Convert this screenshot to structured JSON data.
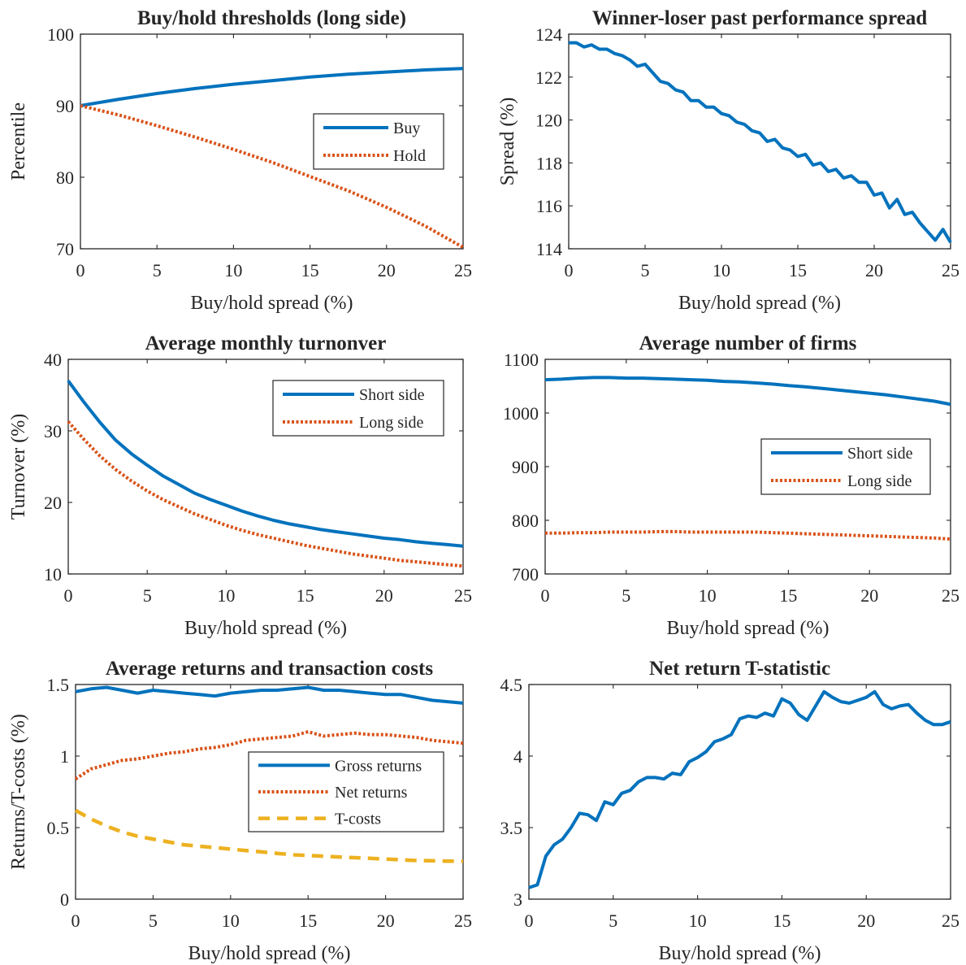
{
  "chart_data": [
    {
      "type": "line",
      "title": "Buy/hold thresholds (long side)",
      "xlabel": "Buy/hold spread (%)",
      "ylabel": "Percentile",
      "xlim": [
        0,
        25
      ],
      "ylim": [
        70,
        100
      ],
      "xticks": [
        0,
        5,
        10,
        15,
        20,
        25
      ],
      "yticks": [
        70,
        80,
        90,
        100
      ],
      "grid": false,
      "legend": "middle-right",
      "series": [
        {
          "name": "Buy",
          "style": "solid",
          "color": "#0072BD",
          "x": [
            0,
            2.5,
            5,
            7.5,
            10,
            12.5,
            15,
            17.5,
            20,
            22.5,
            25
          ],
          "y": [
            90,
            90.9,
            91.7,
            92.4,
            93.0,
            93.5,
            94.0,
            94.4,
            94.7,
            95.0,
            95.2
          ]
        },
        {
          "name": "Hold",
          "style": "dotted",
          "color": "#D95319",
          "x": [
            0,
            2.5,
            5,
            7.5,
            10,
            12.5,
            15,
            17.5,
            20,
            22.5,
            25
          ],
          "y": [
            90,
            88.7,
            87.2,
            85.6,
            83.9,
            82.1,
            80.1,
            78.1,
            75.8,
            73.2,
            70.2
          ]
        }
      ]
    },
    {
      "type": "line",
      "title": "Winner-loser past performance spread",
      "xlabel": "Buy/hold spread (%)",
      "ylabel": "Spread (%)",
      "xlim": [
        0,
        25
      ],
      "ylim": [
        114,
        124
      ],
      "xticks": [
        0,
        5,
        10,
        15,
        20,
        25
      ],
      "yticks": [
        114,
        116,
        118,
        120,
        122,
        124
      ],
      "grid": false,
      "series": [
        {
          "name": "",
          "style": "solid",
          "color": "#0072BD",
          "x": [
            0,
            0.5,
            1,
            1.5,
            2,
            2.5,
            3,
            3.5,
            4,
            4.5,
            5,
            5.5,
            6,
            6.5,
            7,
            7.5,
            8,
            8.5,
            9,
            9.5,
            10,
            10.5,
            11,
            11.5,
            12,
            12.5,
            13,
            13.5,
            14,
            14.5,
            15,
            15.5,
            16,
            16.5,
            17,
            17.5,
            18,
            18.5,
            19,
            19.5,
            20,
            20.5,
            21,
            21.5,
            22,
            22.5,
            23,
            23.5,
            24,
            24.5,
            25
          ],
          "y": [
            123.6,
            123.6,
            123.4,
            123.5,
            123.3,
            123.3,
            123.1,
            123.0,
            122.8,
            122.5,
            122.6,
            122.2,
            121.8,
            121.7,
            121.4,
            121.3,
            120.9,
            120.9,
            120.6,
            120.6,
            120.3,
            120.2,
            119.9,
            119.8,
            119.5,
            119.4,
            119.0,
            119.1,
            118.7,
            118.6,
            118.3,
            118.4,
            117.9,
            118.0,
            117.6,
            117.7,
            117.3,
            117.4,
            117.1,
            117.1,
            116.5,
            116.6,
            115.9,
            116.3,
            115.6,
            115.7,
            115.2,
            114.8,
            114.4,
            114.9,
            114.3
          ]
        }
      ]
    },
    {
      "type": "line",
      "title": "Average monthly turnonver",
      "xlabel": "Buy/hold spread (%)",
      "ylabel": "Turnover (%)",
      "xlim": [
        0,
        25
      ],
      "ylim": [
        10,
        40
      ],
      "xticks": [
        0,
        5,
        10,
        15,
        20,
        25
      ],
      "yticks": [
        10,
        20,
        30,
        40
      ],
      "grid": false,
      "legend": "top-right",
      "series": [
        {
          "name": "Short side",
          "style": "solid",
          "color": "#0072BD",
          "x": [
            0,
            1,
            2,
            3,
            4,
            5,
            6,
            7,
            8,
            9,
            10,
            11,
            12,
            13,
            14,
            15,
            16,
            17,
            18,
            19,
            20,
            21,
            22,
            23,
            24,
            25
          ],
          "y": [
            37.0,
            34.0,
            31.2,
            28.7,
            26.8,
            25.2,
            23.7,
            22.5,
            21.3,
            20.4,
            19.6,
            18.8,
            18.1,
            17.5,
            17.0,
            16.6,
            16.2,
            15.9,
            15.6,
            15.3,
            15.0,
            14.8,
            14.5,
            14.3,
            14.1,
            13.9
          ]
        },
        {
          "name": "Long side",
          "style": "dotted",
          "color": "#D95319",
          "x": [
            0,
            1,
            2,
            3,
            4,
            5,
            6,
            7,
            8,
            9,
            10,
            11,
            12,
            13,
            14,
            15,
            16,
            17,
            18,
            19,
            20,
            21,
            22,
            23,
            24,
            25
          ],
          "y": [
            31.3,
            28.8,
            26.5,
            24.6,
            23.0,
            21.6,
            20.4,
            19.4,
            18.4,
            17.6,
            16.8,
            16.1,
            15.5,
            15.0,
            14.5,
            14.0,
            13.6,
            13.2,
            12.8,
            12.5,
            12.2,
            11.9,
            11.7,
            11.5,
            11.3,
            11.1
          ]
        }
      ]
    },
    {
      "type": "line",
      "title": "Average number of firms",
      "xlabel": "Buy/hold spread (%)",
      "ylabel": "",
      "xlim": [
        0,
        25
      ],
      "ylim": [
        700,
        1100
      ],
      "xticks": [
        0,
        5,
        10,
        15,
        20,
        25
      ],
      "yticks": [
        700,
        800,
        900,
        1000,
        1100
      ],
      "grid": false,
      "legend": "middle-right",
      "series": [
        {
          "name": "Short side",
          "style": "solid",
          "color": "#0072BD",
          "x": [
            0,
            1,
            2,
            3,
            4,
            5,
            6,
            7,
            8,
            9,
            10,
            11,
            12,
            13,
            14,
            15,
            16,
            17,
            18,
            19,
            20,
            21,
            22,
            23,
            24,
            25
          ],
          "y": [
            1062,
            1063,
            1065,
            1066,
            1066,
            1065,
            1065,
            1064,
            1063,
            1062,
            1061,
            1059,
            1058,
            1056,
            1054,
            1051,
            1049,
            1046,
            1043,
            1040,
            1037,
            1034,
            1030,
            1026,
            1022,
            1016
          ]
        },
        {
          "name": "Long side",
          "style": "dotted",
          "color": "#D95319",
          "x": [
            0,
            1,
            2,
            3,
            4,
            5,
            6,
            7,
            8,
            9,
            10,
            11,
            12,
            13,
            14,
            15,
            16,
            17,
            18,
            19,
            20,
            21,
            22,
            23,
            24,
            25
          ],
          "y": [
            776,
            776,
            777,
            777,
            778,
            778,
            778,
            779,
            779,
            778,
            778,
            778,
            778,
            778,
            777,
            776,
            775,
            774,
            773,
            772,
            771,
            770,
            769,
            768,
            767,
            765
          ]
        }
      ]
    },
    {
      "type": "line",
      "title": "Average returns and transaction costs",
      "xlabel": "Buy/hold spread (%)",
      "ylabel": "Returns/T-costs (%)",
      "xlim": [
        0,
        25
      ],
      "ylim": [
        0,
        1.5
      ],
      "xticks": [
        0,
        5,
        10,
        15,
        20,
        25
      ],
      "yticks": [
        0,
        0.5,
        1,
        1.5
      ],
      "grid": false,
      "legend": "middle-right",
      "series": [
        {
          "name": "Gross returns",
          "style": "solid",
          "color": "#0072BD",
          "x": [
            0,
            1,
            2,
            3,
            4,
            5,
            6,
            7,
            8,
            9,
            10,
            11,
            12,
            13,
            14,
            15,
            16,
            17,
            18,
            19,
            20,
            21,
            22,
            23,
            24,
            25
          ],
          "y": [
            1.45,
            1.47,
            1.48,
            1.46,
            1.44,
            1.46,
            1.45,
            1.44,
            1.43,
            1.42,
            1.44,
            1.45,
            1.46,
            1.46,
            1.47,
            1.48,
            1.46,
            1.46,
            1.45,
            1.44,
            1.43,
            1.43,
            1.41,
            1.39,
            1.38,
            1.37
          ]
        },
        {
          "name": "Net returns",
          "style": "dotted",
          "color": "#D95319",
          "x": [
            0,
            1,
            2,
            3,
            4,
            5,
            6,
            7,
            8,
            9,
            10,
            11,
            12,
            13,
            14,
            15,
            16,
            17,
            18,
            19,
            20,
            21,
            22,
            23,
            24,
            25
          ],
          "y": [
            0.84,
            0.91,
            0.94,
            0.97,
            0.98,
            1.0,
            1.02,
            1.03,
            1.05,
            1.06,
            1.08,
            1.11,
            1.12,
            1.13,
            1.14,
            1.17,
            1.14,
            1.15,
            1.16,
            1.15,
            1.15,
            1.14,
            1.13,
            1.11,
            1.1,
            1.09
          ]
        },
        {
          "name": "T-costs",
          "style": "dashed",
          "color": "#EDB120",
          "x": [
            0,
            1,
            2,
            3,
            4,
            5,
            6,
            7,
            8,
            9,
            10,
            11,
            12,
            13,
            14,
            15,
            16,
            17,
            18,
            19,
            20,
            21,
            22,
            23,
            24,
            25
          ],
          "y": [
            0.62,
            0.56,
            0.51,
            0.47,
            0.44,
            0.42,
            0.4,
            0.38,
            0.37,
            0.36,
            0.35,
            0.34,
            0.33,
            0.32,
            0.31,
            0.305,
            0.3,
            0.295,
            0.29,
            0.285,
            0.28,
            0.275,
            0.27,
            0.268,
            0.266,
            0.265
          ]
        }
      ]
    },
    {
      "type": "line",
      "title": "Net return T-statistic",
      "xlabel": "Buy/hold spread (%)",
      "ylabel": "",
      "xlim": [
        0,
        25
      ],
      "ylim": [
        3,
        4.5
      ],
      "xticks": [
        0,
        5,
        10,
        15,
        20,
        25
      ],
      "yticks": [
        3,
        3.5,
        4,
        4.5
      ],
      "grid": false,
      "series": [
        {
          "name": "",
          "style": "solid",
          "color": "#0072BD",
          "x": [
            0,
            0.5,
            1,
            1.5,
            2,
            2.5,
            3,
            3.5,
            4,
            4.5,
            5,
            5.5,
            6,
            6.5,
            7,
            7.5,
            8,
            8.5,
            9,
            9.5,
            10,
            10.5,
            11,
            11.5,
            12,
            12.5,
            13,
            13.5,
            14,
            14.5,
            15,
            15.5,
            16,
            16.5,
            17,
            17.5,
            18,
            18.5,
            19,
            19.5,
            20,
            20.5,
            21,
            21.5,
            22,
            22.5,
            23,
            23.5,
            24,
            24.5,
            25
          ],
          "y": [
            3.08,
            3.1,
            3.3,
            3.38,
            3.42,
            3.5,
            3.6,
            3.59,
            3.55,
            3.68,
            3.66,
            3.74,
            3.76,
            3.82,
            3.85,
            3.85,
            3.84,
            3.88,
            3.87,
            3.96,
            3.99,
            4.03,
            4.1,
            4.12,
            4.15,
            4.26,
            4.28,
            4.27,
            4.3,
            4.28,
            4.4,
            4.37,
            4.29,
            4.25,
            4.35,
            4.45,
            4.41,
            4.38,
            4.37,
            4.39,
            4.41,
            4.45,
            4.36,
            4.33,
            4.35,
            4.36,
            4.3,
            4.25,
            4.22,
            4.22,
            4.24
          ]
        }
      ]
    }
  ]
}
